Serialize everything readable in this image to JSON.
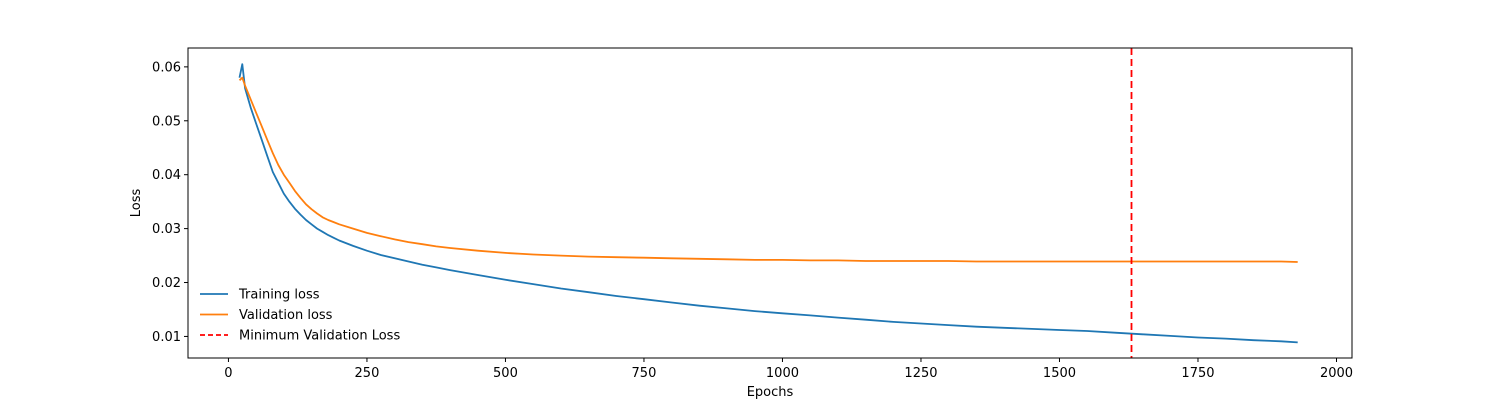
{
  "chart_data": {
    "type": "line",
    "title": "",
    "xlabel": "Epochs",
    "ylabel": "Loss",
    "xlim": [
      -73,
      2028
    ],
    "ylim": [
      0.006,
      0.0635
    ],
    "x_ticks": [
      0,
      250,
      500,
      750,
      1000,
      1250,
      1500,
      1750,
      2000
    ],
    "y_ticks": [
      0.01,
      0.02,
      0.03,
      0.04,
      0.05,
      0.06
    ],
    "x_tick_labels": [
      "0",
      "250",
      "500",
      "750",
      "1000",
      "1250",
      "1500",
      "1750",
      "2000"
    ],
    "y_tick_labels": [
      "0.01",
      "0.02",
      "0.03",
      "0.04",
      "0.05",
      "0.06"
    ],
    "grid": false,
    "legend_position": "lower-left",
    "series": [
      {
        "name": "Training loss",
        "color": "#1f77b4",
        "x": [
          20,
          25,
          30,
          40,
          50,
          60,
          70,
          80,
          90,
          100,
          110,
          120,
          130,
          140,
          150,
          160,
          170,
          180,
          190,
          200,
          225,
          250,
          275,
          300,
          325,
          350,
          375,
          400,
          450,
          500,
          550,
          600,
          650,
          700,
          750,
          800,
          850,
          900,
          950,
          1000,
          1050,
          1100,
          1150,
          1200,
          1250,
          1300,
          1350,
          1400,
          1450,
          1500,
          1550,
          1600,
          1650,
          1700,
          1750,
          1800,
          1850,
          1900,
          1930
        ],
        "y": [
          0.058,
          0.0605,
          0.056,
          0.0525,
          0.0495,
          0.0465,
          0.0435,
          0.0405,
          0.0385,
          0.0365,
          0.035,
          0.0337,
          0.0326,
          0.0316,
          0.0308,
          0.03,
          0.0294,
          0.0288,
          0.0283,
          0.0278,
          0.0268,
          0.0259,
          0.0251,
          0.0245,
          0.0239,
          0.0233,
          0.0228,
          0.0223,
          0.0214,
          0.0205,
          0.0197,
          0.0189,
          0.0182,
          0.0175,
          0.0169,
          0.0163,
          0.0157,
          0.0152,
          0.0147,
          0.0143,
          0.0139,
          0.0135,
          0.0131,
          0.0127,
          0.0124,
          0.0121,
          0.0118,
          0.0116,
          0.0114,
          0.0112,
          0.011,
          0.0107,
          0.0104,
          0.0101,
          0.0098,
          0.0096,
          0.0093,
          0.0091,
          0.0089
        ]
      },
      {
        "name": "Validation loss",
        "color": "#ff7f0e",
        "x": [
          20,
          25,
          30,
          40,
          50,
          60,
          70,
          80,
          90,
          100,
          110,
          120,
          130,
          140,
          150,
          160,
          170,
          180,
          190,
          200,
          225,
          250,
          275,
          300,
          325,
          350,
          375,
          400,
          450,
          500,
          550,
          600,
          650,
          700,
          750,
          800,
          850,
          900,
          950,
          1000,
          1050,
          1100,
          1150,
          1200,
          1250,
          1300,
          1350,
          1400,
          1450,
          1500,
          1550,
          1600,
          1650,
          1700,
          1750,
          1800,
          1850,
          1900,
          1930
        ],
        "y": [
          0.0575,
          0.058,
          0.0565,
          0.054,
          0.0515,
          0.049,
          0.0465,
          0.044,
          0.0418,
          0.04,
          0.0385,
          0.037,
          0.0357,
          0.0345,
          0.0336,
          0.0328,
          0.0321,
          0.0316,
          0.0312,
          0.0308,
          0.03,
          0.0292,
          0.0286,
          0.028,
          0.0275,
          0.0271,
          0.0267,
          0.0264,
          0.0259,
          0.0255,
          0.0252,
          0.025,
          0.0248,
          0.0247,
          0.0246,
          0.0245,
          0.0244,
          0.0243,
          0.0242,
          0.0242,
          0.0241,
          0.0241,
          0.024,
          0.024,
          0.024,
          0.024,
          0.0239,
          0.0239,
          0.0239,
          0.0239,
          0.0239,
          0.0239,
          0.0239,
          0.0239,
          0.0239,
          0.0239,
          0.0239,
          0.0239,
          0.0238
        ]
      }
    ],
    "vline": {
      "name": "Minimum Validation Loss",
      "x": 1630,
      "color": "#ff0000",
      "style": "dashed"
    }
  }
}
